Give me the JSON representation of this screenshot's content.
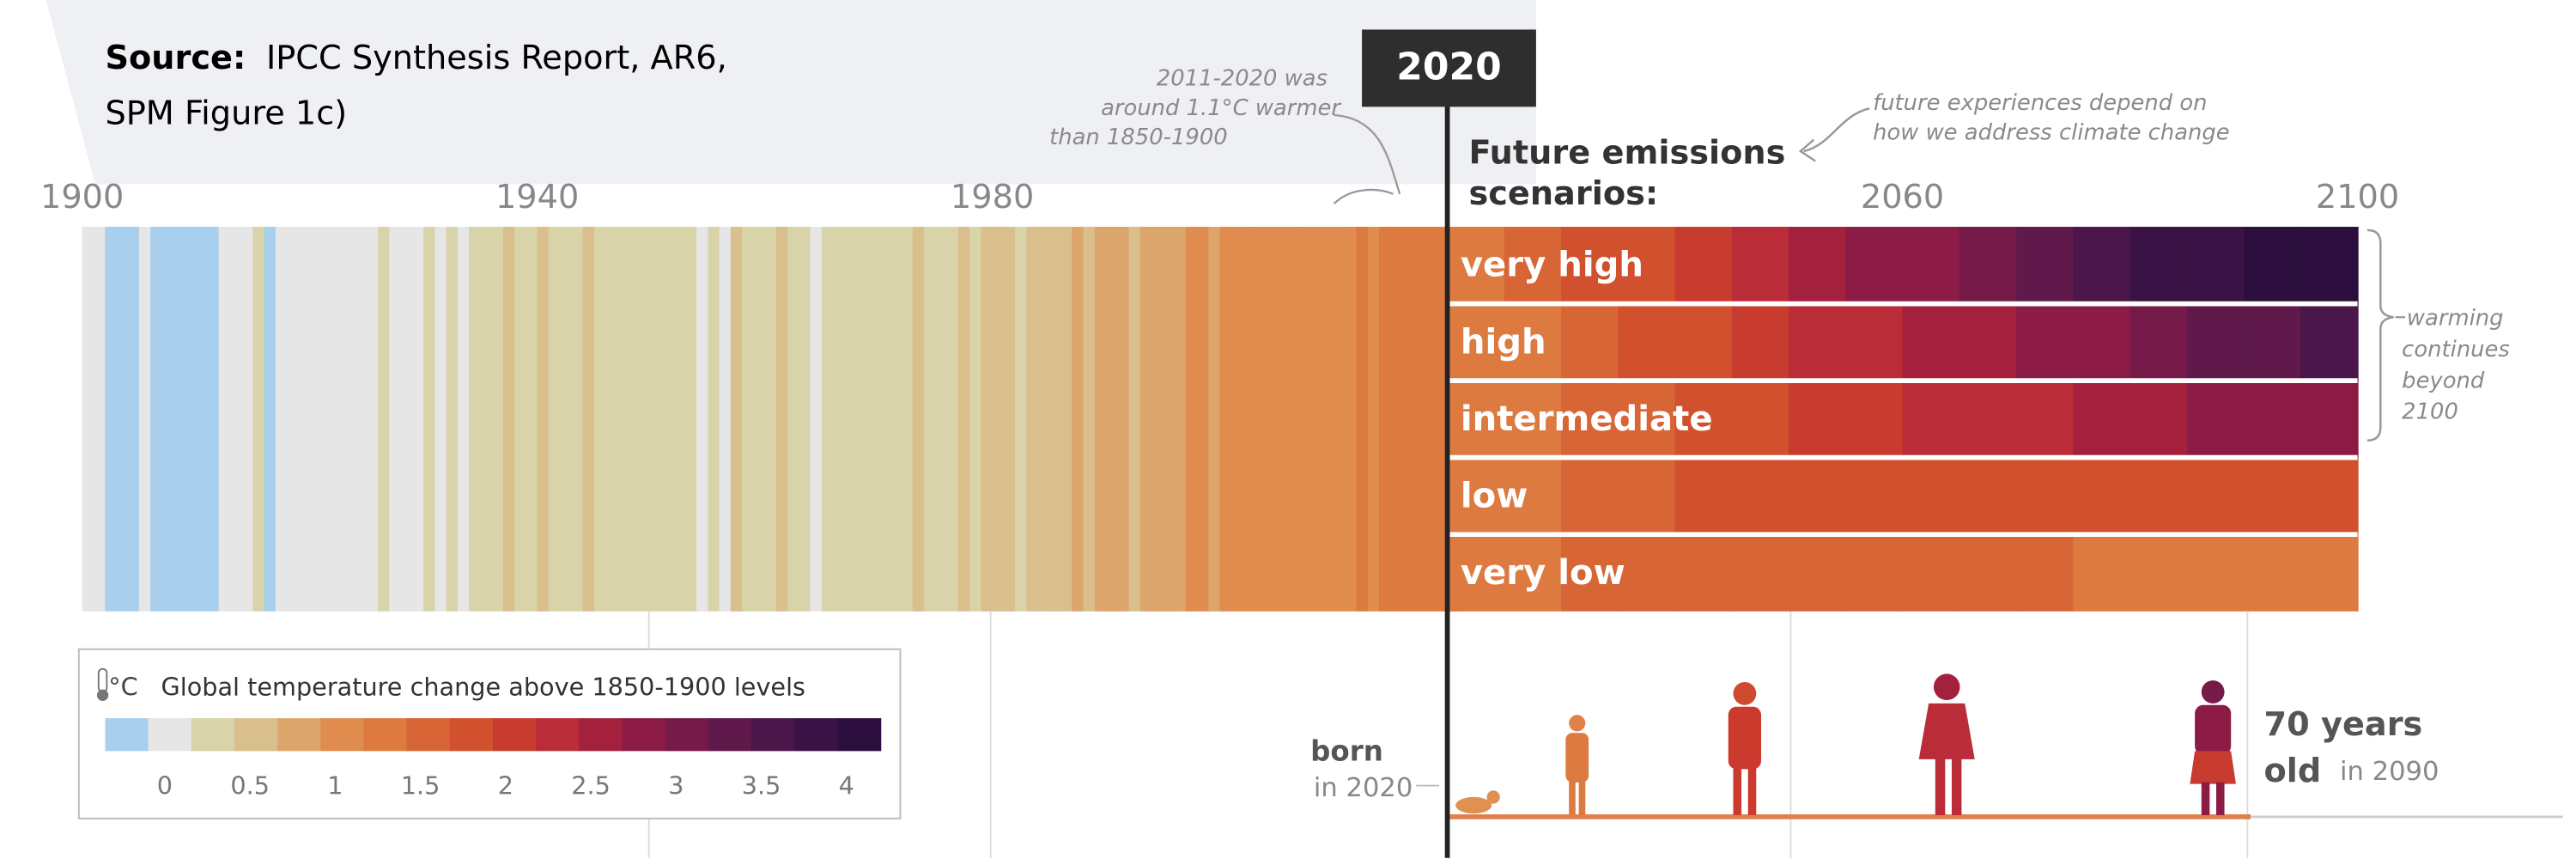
{
  "chart_data": {
    "type": "stripes",
    "source": {
      "label": "Source:",
      "text": "IPCC Synthesis Report, AR6,",
      "text2": "SPM Figure 1c)"
    },
    "xlim": [
      1900,
      2100
    ],
    "xticks": [
      1900,
      1940,
      1980,
      2060,
      2100
    ],
    "marker": 2020,
    "scenarios_title": [
      "Future emissions",
      "scenarios:"
    ],
    "history": {
      "x": [
        1900,
        1901,
        1902,
        1903,
        1904,
        1905,
        1906,
        1907,
        1908,
        1909,
        1910,
        1911,
        1912,
        1913,
        1914,
        1915,
        1916,
        1917,
        1918,
        1919,
        1920,
        1921,
        1922,
        1923,
        1924,
        1925,
        1926,
        1927,
        1928,
        1929,
        1930,
        1931,
        1932,
        1933,
        1934,
        1935,
        1936,
        1937,
        1938,
        1939,
        1940,
        1941,
        1942,
        1943,
        1944,
        1945,
        1946,
        1947,
        1948,
        1949,
        1950,
        1951,
        1952,
        1953,
        1954,
        1955,
        1956,
        1957,
        1958,
        1959,
        1960,
        1961,
        1962,
        1963,
        1964,
        1965,
        1966,
        1967,
        1968,
        1969,
        1970,
        1971,
        1972,
        1973,
        1974,
        1975,
        1976,
        1977,
        1978,
        1979,
        1980,
        1981,
        1982,
        1983,
        1984,
        1985,
        1986,
        1987,
        1988,
        1989,
        1990,
        1991,
        1992,
        1993,
        1994,
        1995,
        1996,
        1997,
        1998,
        1999,
        2000,
        2001,
        2002,
        2003,
        2004,
        2005,
        2006,
        2007,
        2008,
        2009,
        2010,
        2011,
        2012,
        2013,
        2014,
        2015,
        2016,
        2017,
        2018,
        2019,
        2020
      ],
      "values": [
        0.0,
        0.0,
        -0.25,
        -0.25,
        -0.25,
        0.0,
        -0.25,
        -0.25,
        -0.25,
        -0.25,
        -0.25,
        -0.25,
        0.0,
        0.0,
        0.0,
        0.2,
        -0.25,
        0.0,
        0.0,
        0.0,
        0.0,
        0.0,
        0.0,
        0.0,
        0.0,
        0.0,
        0.2,
        0.0,
        0.0,
        0.0,
        0.2,
        0.0,
        0.2,
        0.0,
        0.2,
        0.2,
        0.2,
        0.45,
        0.2,
        0.2,
        0.45,
        0.2,
        0.2,
        0.2,
        0.45,
        0.2,
        0.2,
        0.2,
        0.2,
        0.2,
        0.2,
        0.2,
        0.2,
        0.2,
        0.0,
        0.2,
        0.0,
        0.45,
        0.2,
        0.2,
        0.2,
        0.45,
        0.2,
        0.2,
        0.0,
        0.2,
        0.2,
        0.2,
        0.2,
        0.2,
        0.2,
        0.2,
        0.2,
        0.45,
        0.2,
        0.2,
        0.2,
        0.45,
        0.2,
        0.45,
        0.45,
        0.45,
        0.2,
        0.45,
        0.45,
        0.45,
        0.45,
        0.7,
        0.45,
        0.7,
        0.7,
        0.7,
        0.45,
        0.7,
        0.7,
        0.7,
        0.7,
        0.95,
        0.95,
        0.7,
        0.95,
        0.95,
        0.95,
        0.95,
        0.95,
        0.95,
        0.95,
        0.95,
        0.95,
        0.95,
        0.95,
        0.95,
        1.25,
        0.95,
        1.25,
        1.25,
        1.25,
        1.25,
        1.25,
        1.25,
        1.25
      ]
    },
    "scenarios": {
      "x": [
        2020,
        2025,
        2030,
        2035,
        2040,
        2045,
        2050,
        2055,
        2060,
        2065,
        2070,
        2075,
        2080,
        2085,
        2090,
        2095
      ],
      "series": [
        {
          "name": "very high",
          "values": [
            1.3,
            1.5,
            1.7,
            1.9,
            2.1,
            2.3,
            2.5,
            2.7,
            2.9,
            3.1,
            3.3,
            3.5,
            3.7,
            3.9,
            4.0,
            4.1
          ]
        },
        {
          "name": "high",
          "values": [
            1.3,
            1.4,
            1.6,
            1.7,
            1.9,
            2.0,
            2.2,
            2.3,
            2.5,
            2.6,
            2.8,
            2.9,
            3.1,
            3.2,
            3.4,
            3.5
          ]
        },
        {
          "name": "intermediate",
          "values": [
            1.3,
            1.4,
            1.5,
            1.6,
            1.8,
            1.9,
            2.0,
            2.1,
            2.2,
            2.3,
            2.4,
            2.5,
            2.6,
            2.7,
            2.7,
            2.8
          ]
        },
        {
          "name": "low",
          "values": [
            1.3,
            1.4,
            1.5,
            1.6,
            1.7,
            1.8,
            1.8,
            1.9,
            1.9,
            1.9,
            1.9,
            1.9,
            1.9,
            1.9,
            1.9,
            1.9
          ]
        },
        {
          "name": "very low",
          "values": [
            1.3,
            1.4,
            1.5,
            1.5,
            1.6,
            1.6,
            1.6,
            1.5,
            1.5,
            1.5,
            1.5,
            1.4,
            1.4,
            1.4,
            1.4,
            1.4
          ]
        }
      ]
    },
    "colorbar": {
      "unit": "°C",
      "title": "Global temperature change above 1850-1900 levels",
      "clim": [
        -0.35,
        4.2
      ],
      "ticks": [
        0,
        0.5,
        1,
        1.5,
        2,
        2.5,
        3,
        3.5,
        4
      ],
      "colors": [
        "#a8d0ee",
        "#e6e6e6",
        "#d9d3a9",
        "#d8bf8b",
        "#dca56b",
        "#df8c4e",
        "#dc7a3f",
        "#d76535",
        "#d1502e",
        "#c83c2f",
        "#ba2c37",
        "#a4213e",
        "#8c1c45",
        "#751a49",
        "#5f1a4b",
        "#4b1649",
        "#3b1245",
        "#2b0e3d"
      ]
    },
    "annotations": {
      "past": [
        "2011-2020 was",
        "around 1.1°C warmer",
        "than 1850-1900"
      ],
      "future": [
        "future experiences depend on",
        "how we address climate change"
      ],
      "beyond": [
        "warming",
        "continues",
        "beyond",
        "2100"
      ],
      "born": [
        "born",
        "in 2020"
      ],
      "age": [
        "70 years",
        "old",
        "in 2090"
      ]
    }
  }
}
